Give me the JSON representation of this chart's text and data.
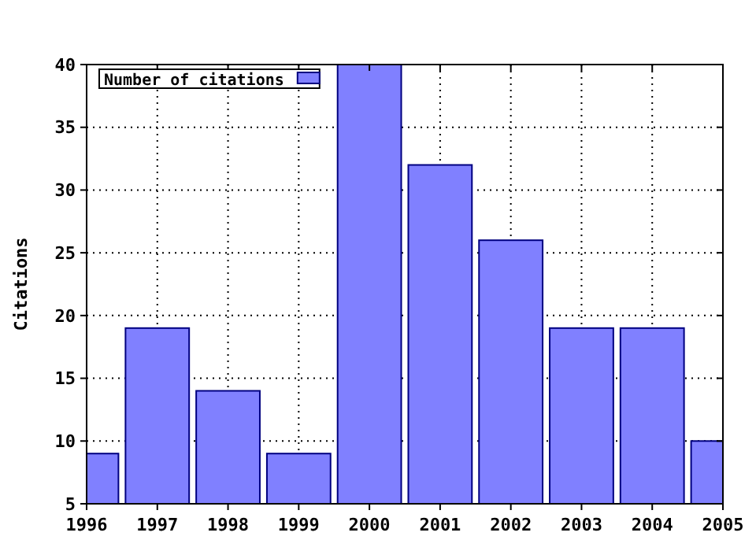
{
  "chart_data": {
    "type": "bar",
    "ylabel": "Citations",
    "x": [
      1996,
      1997,
      1998,
      1999,
      2000,
      2001,
      2002,
      2003,
      2004,
      2005
    ],
    "series": [
      {
        "name": "Number of citations",
        "color": "#8080ff",
        "values": [
          9,
          19,
          14,
          9,
          40,
          32,
          26,
          19,
          19,
          10
        ]
      }
    ],
    "xlim": [
      1996,
      2005
    ],
    "xticks": [
      1996,
      1997,
      1998,
      1999,
      2000,
      2001,
      2002,
      2003,
      2004,
      2005
    ],
    "ylim": [
      5,
      40
    ],
    "yticks": [
      5,
      10,
      15,
      20,
      25,
      30,
      35,
      40
    ],
    "grid": true,
    "legend": "top left"
  }
}
